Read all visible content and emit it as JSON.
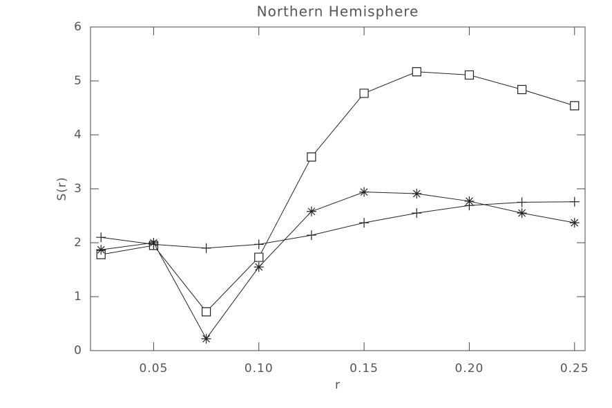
{
  "chart_data": {
    "type": "line",
    "title": "Northern Hemisphere",
    "xlabel": "r",
    "ylabel": "S(r)",
    "x": [
      0.025,
      0.05,
      0.075,
      0.1,
      0.125,
      0.15,
      0.175,
      0.2,
      0.225,
      0.25
    ],
    "series": [
      {
        "marker": "square",
        "color": "#222222",
        "values": [
          1.78,
          1.95,
          0.72,
          1.73,
          3.59,
          4.77,
          5.17,
          5.11,
          4.84,
          4.54
        ]
      },
      {
        "marker": "plus",
        "color": "#222222",
        "values": [
          2.1,
          1.97,
          1.9,
          1.97,
          2.14,
          2.37,
          2.55,
          2.69,
          2.75,
          2.76
        ]
      },
      {
        "marker": "asterisk",
        "color": "#222222",
        "values": [
          1.87,
          2.0,
          0.22,
          1.55,
          2.58,
          2.94,
          2.91,
          2.77,
          2.55,
          2.37
        ]
      }
    ],
    "xlim": [
      0.02,
      0.255
    ],
    "ylim": [
      0,
      6
    ],
    "xticks": [
      0.05,
      {
        "value": 0.1,
        "label": "0.10"
      },
      0.15,
      {
        "value": 0.2,
        "label": "0.20"
      },
      0.25
    ],
    "yticks": [
      0,
      1,
      2,
      3,
      4,
      5,
      6
    ]
  }
}
